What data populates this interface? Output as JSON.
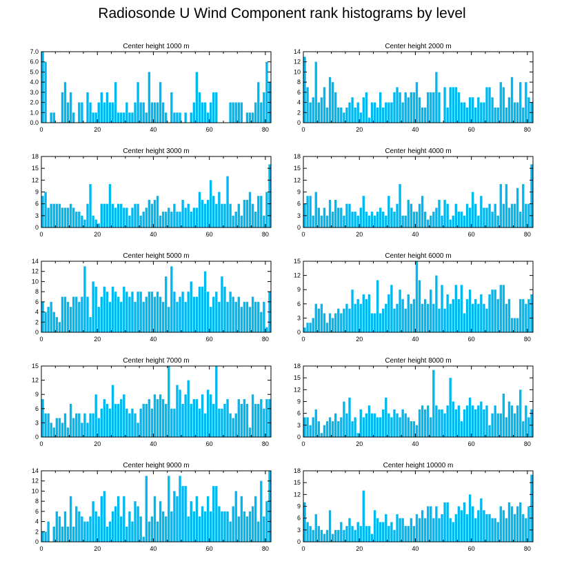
{
  "title": "Radiosonde U Wind Component rank histograms by level",
  "chart_data": [
    {
      "type": "bar",
      "title": "Center height 1000 m",
      "xlim": [
        0,
        82
      ],
      "ylim": [
        0,
        7
      ],
      "xticks": [
        0,
        20,
        40,
        60,
        80
      ],
      "yticks": [
        "0.0",
        "1.0",
        "2.0",
        "3.0",
        "4.0",
        "5.0",
        "6.0",
        "7.0"
      ],
      "values": [
        7,
        6,
        0,
        1,
        1,
        0,
        0,
        3,
        4,
        2,
        3,
        1,
        0,
        2,
        2,
        0,
        3,
        2,
        1,
        1,
        2,
        3,
        2,
        3,
        2,
        2,
        4,
        1,
        1,
        1,
        2,
        1,
        1,
        2,
        4,
        2,
        2,
        1,
        5,
        2,
        2,
        2,
        4,
        2,
        1,
        0,
        3,
        1,
        1,
        1,
        0,
        1,
        0,
        1,
        2,
        5,
        3,
        2,
        2,
        1,
        2,
        3,
        3,
        0,
        0,
        0,
        0,
        2,
        2,
        2,
        2,
        2,
        0,
        1,
        1,
        1,
        2,
        4,
        2,
        3,
        6,
        4
      ]
    },
    {
      "type": "bar",
      "title": "Center height 2000 m",
      "xlim": [
        0,
        82
      ],
      "ylim": [
        0,
        14
      ],
      "xticks": [
        0,
        20,
        40,
        60,
        80
      ],
      "yticks": [
        "0",
        "2",
        "4",
        "6",
        "8",
        "10",
        "12",
        "14"
      ],
      "values": [
        13,
        7,
        4,
        5,
        12,
        4,
        5,
        7,
        3,
        9,
        8,
        6,
        3,
        3,
        2,
        3,
        4,
        5,
        3,
        4,
        2,
        5,
        6,
        1,
        4,
        4,
        3,
        6,
        3,
        4,
        4,
        4,
        6,
        7,
        6,
        4,
        6,
        5,
        6,
        6,
        8,
        5,
        3,
        3,
        6,
        6,
        6,
        10,
        6,
        0,
        7,
        3,
        7,
        7,
        7,
        6,
        4,
        4,
        3,
        5,
        5,
        3,
        5,
        4,
        4,
        7,
        7,
        5,
        3,
        3,
        8,
        7,
        3,
        5,
        9,
        4,
        4,
        8,
        3,
        8,
        5,
        4
      ]
    },
    {
      "type": "bar",
      "title": "Center height 3000 m",
      "xlim": [
        0,
        82
      ],
      "ylim": [
        0,
        18
      ],
      "xticks": [
        0,
        20,
        40,
        60,
        80
      ],
      "yticks": [
        "0",
        "3",
        "6",
        "9",
        "12",
        "15",
        "18"
      ],
      "values": [
        8,
        9,
        5,
        6,
        6,
        6,
        6,
        5,
        5,
        5,
        6,
        5,
        4,
        4,
        3,
        2,
        6,
        11,
        3,
        2,
        1,
        6,
        6,
        6,
        11,
        6,
        5,
        6,
        6,
        5,
        5,
        3,
        5,
        6,
        6,
        3,
        4,
        5,
        7,
        6,
        7,
        8,
        3,
        4,
        4,
        5,
        4,
        6,
        4,
        4,
        7,
        5,
        6,
        4,
        5,
        5,
        9,
        7,
        6,
        7,
        12,
        8,
        6,
        9,
        6,
        6,
        13,
        6,
        3,
        4,
        6,
        3,
        7,
        7,
        9,
        6,
        4,
        8,
        8,
        3,
        9,
        16
      ]
    },
    {
      "type": "bar",
      "title": "Center height 4000 m",
      "xlim": [
        0,
        82
      ],
      "ylim": [
        0,
        18
      ],
      "xticks": [
        0,
        20,
        40,
        60,
        80
      ],
      "yticks": [
        "0",
        "3",
        "6",
        "9",
        "12",
        "15",
        "18"
      ],
      "values": [
        6,
        8,
        8,
        3,
        9,
        5,
        3,
        5,
        3,
        7,
        4,
        7,
        5,
        5,
        3,
        6,
        6,
        4,
        4,
        3,
        5,
        8,
        4,
        3,
        4,
        3,
        4,
        5,
        4,
        3,
        8,
        5,
        4,
        6,
        11,
        3,
        3,
        7,
        6,
        4,
        4,
        6,
        8,
        4,
        2,
        3,
        4,
        5,
        7,
        3,
        7,
        6,
        2,
        3,
        6,
        4,
        4,
        3,
        6,
        5,
        9,
        6,
        3,
        8,
        5,
        5,
        6,
        4,
        6,
        3,
        11,
        6,
        11,
        5,
        6,
        6,
        10,
        4,
        11,
        6,
        6,
        16
      ]
    },
    {
      "type": "bar",
      "title": "Center height 5000 m",
      "xlim": [
        0,
        82
      ],
      "ylim": [
        0,
        14
      ],
      "xticks": [
        0,
        20,
        40,
        60,
        80
      ],
      "yticks": [
        "0",
        "2",
        "4",
        "6",
        "8",
        "10",
        "12",
        "14"
      ],
      "values": [
        6,
        4,
        5,
        6,
        4,
        3,
        2,
        7,
        7,
        6,
        5,
        7,
        7,
        6,
        7,
        13,
        7,
        3,
        10,
        9,
        5,
        7,
        9,
        8,
        6,
        9,
        8,
        7,
        6,
        9,
        8,
        7,
        8,
        6,
        8,
        8,
        6,
        7,
        8,
        8,
        7,
        8,
        7,
        6,
        11,
        5,
        13,
        8,
        6,
        7,
        8,
        6,
        8,
        10,
        7,
        7,
        9,
        9,
        12,
        8,
        5,
        7,
        8,
        6,
        11,
        9,
        6,
        8,
        7,
        6,
        7,
        5,
        6,
        6,
        5,
        7,
        6,
        6,
        4,
        6,
        1,
        8
      ]
    },
    {
      "type": "bar",
      "title": "Center height 6000 m",
      "xlim": [
        0,
        82
      ],
      "ylim": [
        0,
        15
      ],
      "xticks": [
        0,
        20,
        40,
        60,
        80
      ],
      "yticks": [
        "0",
        "3",
        "6",
        "9",
        "12",
        "15"
      ],
      "values": [
        1,
        2,
        2,
        3,
        6,
        5,
        6,
        4,
        2,
        4,
        3,
        4,
        5,
        4,
        5,
        6,
        5,
        9,
        6,
        7,
        6,
        8,
        7,
        8,
        4,
        4,
        11,
        4,
        5,
        6,
        8,
        10,
        5,
        6,
        9,
        7,
        5,
        8,
        6,
        7,
        15,
        11,
        6,
        7,
        6,
        9,
        6,
        12,
        5,
        10,
        5,
        8,
        6,
        7,
        10,
        7,
        10,
        4,
        7,
        9,
        6,
        7,
        6,
        8,
        6,
        5,
        8,
        9,
        9,
        7,
        10,
        10,
        6,
        7,
        3,
        3,
        3,
        7,
        7,
        6,
        7,
        8
      ]
    },
    {
      "type": "bar",
      "title": "Center height 7000 m",
      "xlim": [
        0,
        82
      ],
      "ylim": [
        0,
        15
      ],
      "xticks": [
        0,
        20,
        40,
        60,
        80
      ],
      "yticks": [
        "0",
        "3",
        "6",
        "9",
        "12",
        "15"
      ],
      "values": [
        8,
        5,
        5,
        3,
        2,
        4,
        4,
        3,
        5,
        2,
        7,
        4,
        5,
        5,
        3,
        5,
        3,
        5,
        5,
        9,
        4,
        6,
        8,
        7,
        6,
        11,
        7,
        7,
        8,
        9,
        6,
        5,
        6,
        5,
        3,
        6,
        7,
        7,
        8,
        6,
        9,
        8,
        9,
        8,
        7,
        15,
        6,
        6,
        11,
        10,
        7,
        9,
        12,
        7,
        8,
        8,
        6,
        9,
        5,
        10,
        9,
        7,
        15,
        6,
        6,
        7,
        8,
        5,
        4,
        5,
        8,
        7,
        8,
        7,
        2,
        9,
        7,
        7,
        8,
        6,
        8,
        8
      ]
    },
    {
      "type": "bar",
      "title": "Center height 8000 m",
      "xlim": [
        0,
        82
      ],
      "ylim": [
        0,
        18
      ],
      "xticks": [
        0,
        20,
        40,
        60,
        80
      ],
      "yticks": [
        "0",
        "3",
        "6",
        "9",
        "12",
        "15",
        "18"
      ],
      "values": [
        5,
        5,
        3,
        5,
        7,
        4,
        1,
        3,
        4,
        5,
        4,
        6,
        4,
        5,
        9,
        6,
        10,
        4,
        5,
        1,
        7,
        5,
        6,
        8,
        6,
        6,
        5,
        5,
        7,
        10,
        6,
        5,
        7,
        6,
        5,
        7,
        6,
        5,
        4,
        4,
        3,
        7,
        8,
        7,
        8,
        5,
        17,
        8,
        7,
        7,
        6,
        8,
        15,
        9,
        7,
        8,
        4,
        7,
        8,
        10,
        8,
        7,
        8,
        9,
        7,
        8,
        3,
        6,
        8,
        6,
        6,
        11,
        5,
        9,
        8,
        6,
        8,
        12,
        4,
        8,
        5,
        7
      ]
    },
    {
      "type": "bar",
      "title": "Center height 9000 m",
      "xlim": [
        0,
        82
      ],
      "ylim": [
        0,
        14
      ],
      "xticks": [
        0,
        20,
        40,
        60,
        80
      ],
      "yticks": [
        "0",
        "2",
        "4",
        "6",
        "8",
        "10",
        "12",
        "14"
      ],
      "values": [
        2,
        2,
        4,
        0,
        3,
        6,
        5,
        3,
        6,
        3,
        9,
        3,
        7,
        6,
        5,
        4,
        4,
        5,
        8,
        6,
        5,
        9,
        10,
        3,
        4,
        6,
        7,
        9,
        5,
        9,
        3,
        6,
        4,
        8,
        7,
        5,
        1,
        13,
        4,
        5,
        9,
        4,
        8,
        6,
        5,
        13,
        6,
        10,
        9,
        13,
        11,
        11,
        5,
        8,
        6,
        9,
        5,
        7,
        6,
        9,
        6,
        11,
        11,
        7,
        6,
        6,
        6,
        4,
        7,
        10,
        5,
        9,
        6,
        5,
        6,
        7,
        9,
        4,
        12,
        5,
        8,
        14
      ]
    },
    {
      "type": "bar",
      "title": "Center height 10000 m",
      "xlim": [
        0,
        82
      ],
      "ylim": [
        0,
        18
      ],
      "xticks": [
        0,
        20,
        40,
        60,
        80
      ],
      "yticks": [
        "0",
        "3",
        "6",
        "9",
        "12",
        "15",
        "18"
      ],
      "values": [
        10,
        5,
        4,
        3,
        7,
        4,
        3,
        2,
        3,
        8,
        2,
        3,
        3,
        5,
        3,
        4,
        6,
        4,
        3,
        5,
        4,
        13,
        4,
        4,
        2,
        8,
        6,
        5,
        5,
        7,
        4,
        5,
        3,
        7,
        6,
        6,
        4,
        4,
        6,
        4,
        7,
        6,
        8,
        6,
        9,
        9,
        6,
        9,
        6,
        7,
        10,
        10,
        6,
        5,
        7,
        9,
        8,
        10,
        7,
        12,
        9,
        6,
        8,
        11,
        8,
        7,
        7,
        6,
        6,
        5,
        9,
        8,
        6,
        10,
        9,
        7,
        9,
        10,
        7,
        6,
        9,
        17
      ]
    }
  ]
}
